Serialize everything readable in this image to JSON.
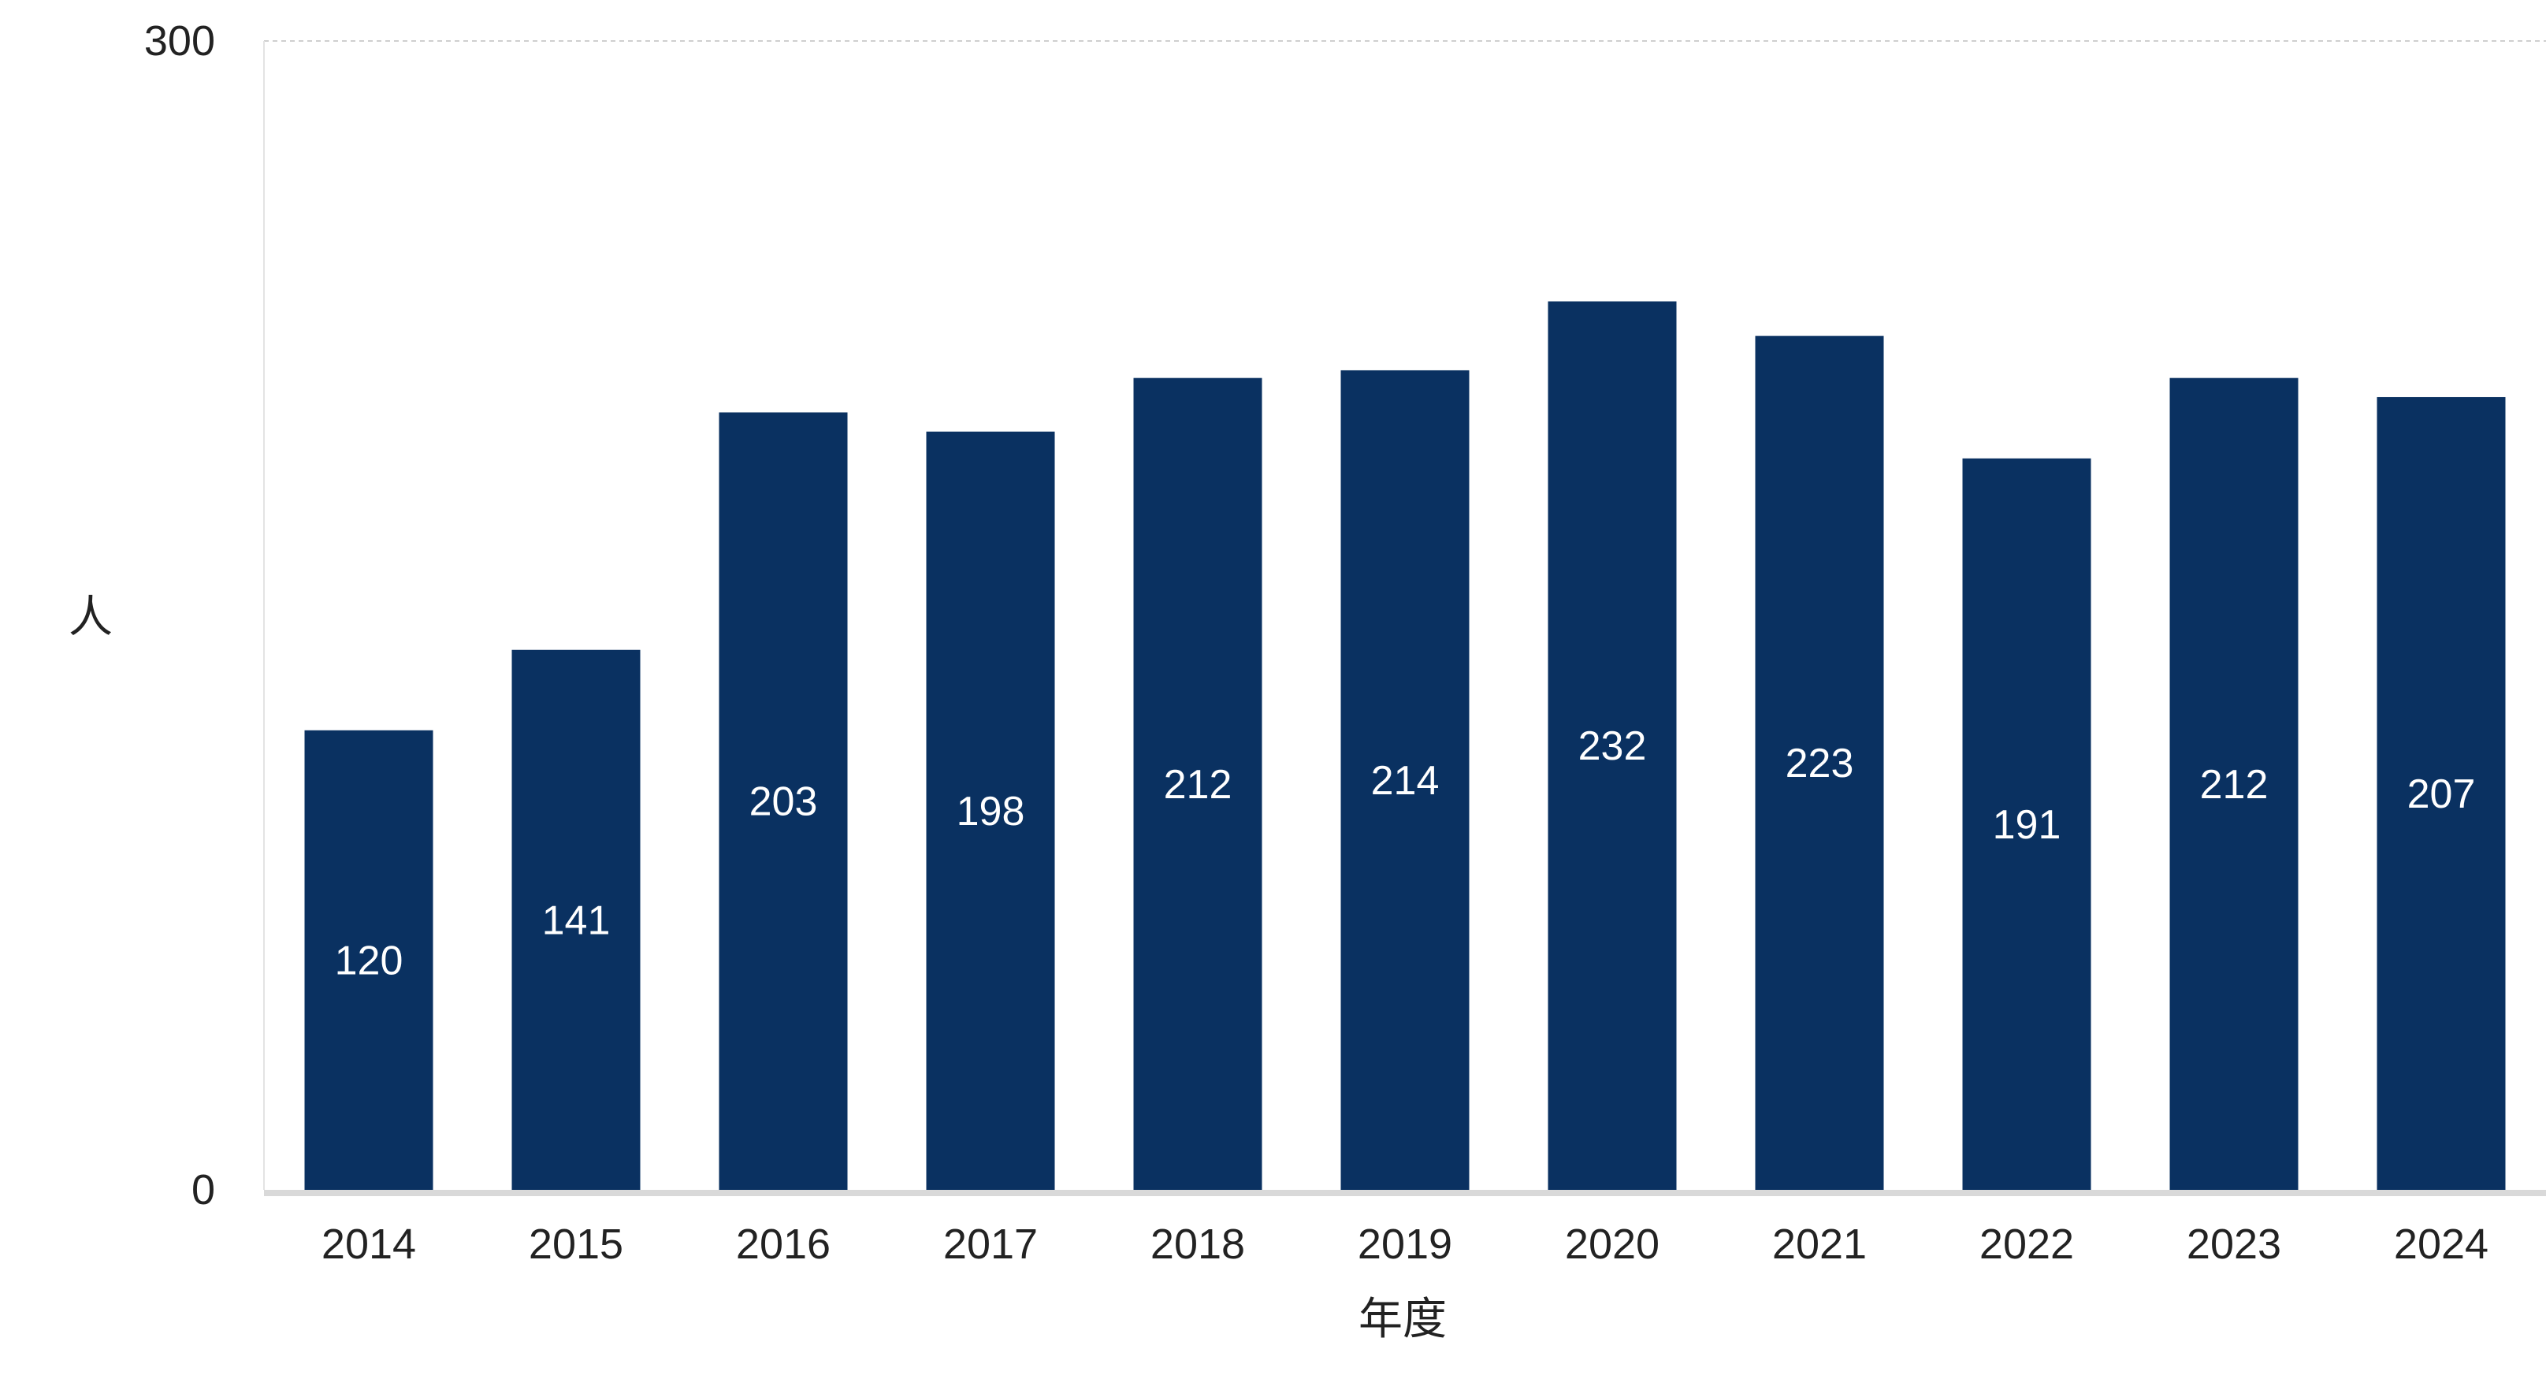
{
  "chart_data": {
    "type": "bar",
    "categories": [
      "2014",
      "2015",
      "2016",
      "2017",
      "2018",
      "2019",
      "2020",
      "2021",
      "2022",
      "2023",
      "2024"
    ],
    "values": [
      120,
      141,
      203,
      198,
      212,
      214,
      232,
      223,
      191,
      212,
      207
    ],
    "xlabel": "年度",
    "ylabel": "人",
    "ylim": [
      0,
      300
    ],
    "yticks": [
      "0",
      "300"
    ],
    "data_labels": true,
    "grid": "top dashed line at 300",
    "colors": {
      "bar": "#0a3161",
      "bar_label": "#ffffff",
      "text": "#222222",
      "baseline": "#d9d9d9",
      "gridline": "#cfcfcf"
    }
  }
}
